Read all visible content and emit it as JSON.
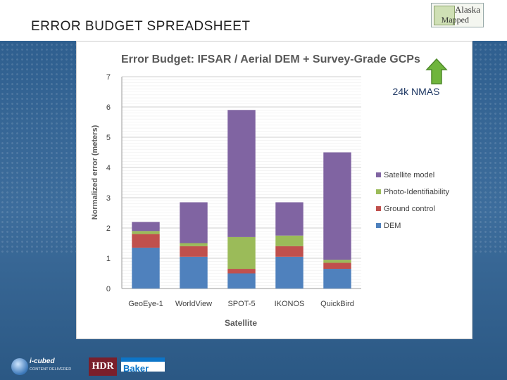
{
  "slide": {
    "title": "ERROR BUDGET SPREADSHEET",
    "logo_text_1": "Alaska",
    "logo_text_2": "Mapped",
    "footer": {
      "icubed_name": "i-cubed",
      "icubed_tag": "CONTENT DELIVERED",
      "hdr": "HDR",
      "baker": "Baker"
    }
  },
  "annotation": {
    "label": "24k NMAS",
    "arrow_color": "#6fb53c"
  },
  "chart_data": {
    "type": "bar",
    "stacked": true,
    "title": "Error Budget: IFSAR / Aerial  DEM + Survey-Grade GCPs",
    "xlabel": "Satellite",
    "ylabel": "Normalized error (meters)",
    "ylim": [
      0,
      7
    ],
    "yticks": [
      0,
      1,
      2,
      3,
      4,
      5,
      6,
      7
    ],
    "grid": true,
    "legend_position": "right",
    "categories": [
      "GeoEye-1",
      "WorldView",
      "SPOT-5",
      "IKONOS",
      "QuickBird"
    ],
    "series": [
      {
        "name": "DEM",
        "color": "#4f81bd",
        "values": [
          1.35,
          1.05,
          0.5,
          1.05,
          0.65
        ]
      },
      {
        "name": "Ground control",
        "color": "#c0504d",
        "values": [
          0.45,
          0.35,
          0.15,
          0.35,
          0.2
        ]
      },
      {
        "name": "Photo-Identifiability",
        "color": "#9bbb59",
        "values": [
          0.1,
          0.1,
          1.05,
          0.35,
          0.1
        ]
      },
      {
        "name": "Satellite model",
        "color": "#8064a2",
        "values": [
          0.3,
          1.35,
          4.2,
          1.1,
          3.55
        ]
      }
    ]
  }
}
